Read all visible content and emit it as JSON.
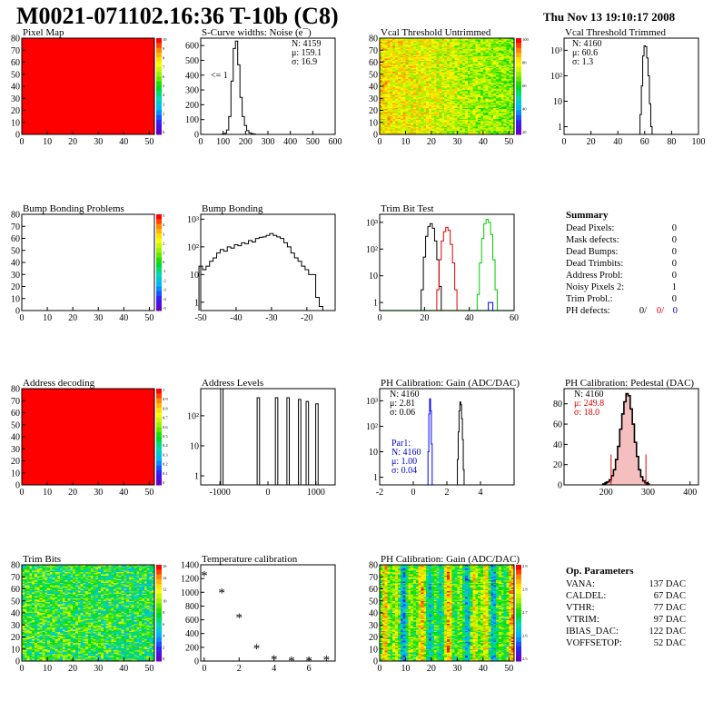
{
  "header": {
    "title": "M0021-071102.16:36 T-10b (C8)",
    "date": "Thu Nov 13 19:10:17 2008"
  },
  "colors": {
    "red_map": "#ff0000",
    "noise_text": "#000000",
    "red_text": "#dd0000",
    "blue_text": "#0000cc",
    "green_line": "#00cc00",
    "red_line": "#dd0000",
    "blue_line": "#0000ff"
  },
  "palette_labels": {
    "pixel_map": [
      "10",
      "9",
      "8",
      "7",
      "6",
      "5",
      "4",
      "3",
      "2",
      "1",
      "0"
    ],
    "bump_map": [
      "5",
      "4",
      "3",
      "2",
      "1",
      "0",
      "-1",
      "-2",
      "-3",
      "-4",
      "-5"
    ],
    "address_map": [
      "1",
      "0.9",
      "0.8",
      "0.7",
      "0.6",
      "0.5",
      "0.4",
      "0.3",
      "0.2",
      "0.1",
      "0"
    ],
    "vcal_map": [
      "100",
      "80",
      "60",
      "40",
      "20"
    ],
    "trim_map": [
      "16",
      "14",
      "12",
      "10",
      "8",
      "6",
      "4",
      "2",
      "0"
    ],
    "gain_map": [
      "2.9",
      "2.8",
      "2.7",
      "2.6",
      "2.5"
    ]
  },
  "chart_data": [
    {
      "id": "pixel-map",
      "type": "heatmap",
      "title": "Pixel Map",
      "x_ticks": [
        "0",
        "10",
        "20",
        "30",
        "40",
        "50"
      ],
      "y_ticks": [
        "0",
        "10",
        "20",
        "30",
        "40",
        "50",
        "60",
        "70",
        "80"
      ],
      "xlim": [
        0,
        52
      ],
      "ylim": [
        0,
        80
      ],
      "fill": "uniform-red"
    },
    {
      "id": "scurve-noise",
      "type": "line",
      "title": "S-Curve widths: Noise (e¯)",
      "x_ticks": [
        "0",
        "100",
        "200",
        "300",
        "400",
        "500",
        "600"
      ],
      "y_ticks": [
        "0",
        "100",
        "200",
        "300",
        "400",
        "500",
        "600"
      ],
      "xlim": [
        0,
        600
      ],
      "ylim": [
        0,
        650
      ],
      "log": false,
      "stats": {
        "entries": "N: 4159",
        "mean": "μ: 159.1",
        "sigma": "σ: 16.9"
      },
      "annotation": "<= 1",
      "x": [
        90,
        100,
        110,
        120,
        130,
        140,
        150,
        160,
        170,
        180,
        190,
        200,
        210,
        220,
        230,
        240,
        250
      ],
      "y": [
        0,
        2,
        8,
        30,
        120,
        360,
        580,
        630,
        470,
        250,
        120,
        60,
        25,
        10,
        5,
        2,
        0
      ]
    },
    {
      "id": "vcal-untrimmed",
      "type": "heatmap",
      "title": "Vcal Threshold Untrimmed",
      "x_ticks": [
        "0",
        "10",
        "20",
        "30",
        "40",
        "50"
      ],
      "y_ticks": [
        "0",
        "10",
        "20",
        "30",
        "40",
        "50",
        "60",
        "70",
        "80"
      ],
      "xlim": [
        0,
        52
      ],
      "ylim": [
        0,
        80
      ],
      "zlim": [
        20,
        110
      ]
    },
    {
      "id": "vcal-trimmed",
      "type": "line",
      "title": "Vcal Threshold Trimmed",
      "x_ticks": [
        "0",
        "20",
        "40",
        "60",
        "80",
        "100"
      ],
      "y_ticks": [
        "1",
        "10",
        "10²",
        "10³"
      ],
      "xlim": [
        0,
        100
      ],
      "ylim": [
        0.5,
        3000
      ],
      "log": true,
      "stats": {
        "entries": "N: 4160",
        "mean": "μ: 60.6",
        "sigma": "σ:  1.3"
      },
      "x": [
        56,
        57,
        58,
        59,
        60,
        61,
        62,
        63,
        64,
        65,
        66
      ],
      "y": [
        0.5,
        3,
        40,
        600,
        1500,
        1400,
        500,
        100,
        8,
        1,
        0.5
      ]
    },
    {
      "id": "bump-problems",
      "type": "heatmap",
      "title": "Bump Bonding Problems",
      "x_ticks": [
        "0",
        "10",
        "20",
        "30",
        "40",
        "50"
      ],
      "y_ticks": [
        "0",
        "10",
        "20",
        "30",
        "40",
        "50",
        "60",
        "70",
        "80"
      ],
      "xlim": [
        0,
        52
      ],
      "ylim": [
        0,
        80
      ],
      "fill": "empty"
    },
    {
      "id": "bump-bonding",
      "type": "line",
      "title": "Bump Bonding",
      "x_ticks": [
        "-50",
        "-40",
        "-30",
        "-20"
      ],
      "y_ticks": [
        "1",
        "10",
        "10²",
        "10³"
      ],
      "xlim": [
        -50,
        -12
      ],
      "ylim": [
        0.5,
        1500
      ],
      "log": true,
      "x": [
        -50,
        -49,
        -48,
        -47,
        -46,
        -45,
        -44,
        -43,
        -42,
        -41,
        -40,
        -39,
        -38,
        -37,
        -36,
        -35,
        -34,
        -33,
        -32,
        -31,
        -30,
        -29,
        -28,
        -27,
        -26,
        -25,
        -24,
        -23,
        -22,
        -21,
        -20,
        -19,
        -18,
        -17,
        -16,
        -15
      ],
      "y": [
        20,
        15,
        20,
        30,
        40,
        60,
        80,
        70,
        100,
        90,
        120,
        110,
        140,
        130,
        170,
        150,
        200,
        220,
        230,
        260,
        300,
        260,
        230,
        200,
        140,
        100,
        60,
        40,
        30,
        20,
        15,
        10,
        10,
        1.5,
        0.7,
        0.4
      ]
    },
    {
      "id": "trim-bit-test",
      "type": "line",
      "title": "Trim Bit Test",
      "x_ticks": [
        "0",
        "20",
        "40",
        "60"
      ],
      "y_ticks": [
        "1",
        "10",
        "10²",
        "10³"
      ],
      "xlim": [
        0,
        60
      ],
      "ylim": [
        0.5,
        2000
      ],
      "log": true,
      "series": [
        {
          "color": "#000000",
          "x": [
            18,
            19,
            20,
            21,
            22,
            23,
            24,
            25,
            26,
            27,
            28
          ],
          "y": [
            0.4,
            3,
            50,
            300,
            700,
            900,
            600,
            200,
            40,
            4,
            0.4
          ]
        },
        {
          "color": "#dd0000",
          "x": [
            25,
            26,
            27,
            28,
            29,
            30,
            31,
            32,
            33,
            34,
            35
          ],
          "y": [
            0.4,
            3,
            40,
            200,
            450,
            650,
            500,
            150,
            30,
            3,
            0.4
          ]
        },
        {
          "color": "#00cc00",
          "x": [
            43,
            44,
            45,
            46,
            47,
            48,
            49,
            50,
            51,
            52,
            53
          ],
          "y": [
            0.4,
            2,
            30,
            250,
            900,
            1300,
            1000,
            350,
            40,
            3,
            0.4
          ]
        },
        {
          "color": "#0000ff",
          "x": [
            48,
            49,
            50,
            51
          ],
          "y": [
            0.4,
            1,
            1,
            0.4
          ]
        }
      ]
    },
    {
      "id": "address-decoding",
      "type": "heatmap",
      "title": "Address decoding",
      "x_ticks": [
        "0",
        "10",
        "20",
        "30",
        "40",
        "50"
      ],
      "y_ticks": [
        "0",
        "10",
        "20",
        "30",
        "40",
        "50",
        "60",
        "70",
        "80"
      ],
      "xlim": [
        0,
        52
      ],
      "ylim": [
        0,
        80
      ],
      "fill": "uniform-red"
    },
    {
      "id": "address-levels",
      "type": "line",
      "title": "Address Levels",
      "x_ticks": [
        "-1000",
        "0",
        "1000"
      ],
      "y_ticks": [
        "1",
        "10",
        "10²"
      ],
      "xlim": [
        -1400,
        1400
      ],
      "ylim": [
        0.5,
        800
      ],
      "log": true,
      "peaks": [
        -960,
        -200,
        180,
        420,
        660,
        820,
        1020
      ],
      "peak_heights": [
        2000,
        400,
        400,
        400,
        350,
        300,
        250
      ]
    },
    {
      "id": "ph-gain",
      "type": "line",
      "title": "PH Calibration: Gain (ADC/DAC)",
      "x_ticks": [
        "-2",
        "0",
        "2",
        "4"
      ],
      "y_ticks": [
        "1",
        "10",
        "10²",
        "10³"
      ],
      "xlim": [
        -2,
        6
      ],
      "ylim": [
        0.5,
        3000
      ],
      "log": true,
      "stats": {
        "entries": "N: 4160",
        "mean": "μ: 2.81",
        "sigma": "σ: 0.06"
      },
      "stats2": {
        "name": "Par1:",
        "entries": "N: 4160",
        "mean": "μ: 1.00",
        "sigma": "σ: 0.04"
      },
      "series": [
        {
          "color": "#000000",
          "x": [
            2.6,
            2.65,
            2.7,
            2.75,
            2.8,
            2.85,
            2.9,
            2.95,
            3.0,
            3.05
          ],
          "y": [
            0.4,
            5,
            60,
            400,
            900,
            700,
            200,
            30,
            2,
            0.4
          ]
        },
        {
          "color": "#0000ff",
          "x": [
            0.85,
            0.9,
            0.95,
            1.0,
            1.05,
            1.1,
            1.15
          ],
          "y": [
            0.4,
            10,
            300,
            1200,
            400,
            20,
            0.4
          ]
        }
      ]
    },
    {
      "id": "ph-pedestal",
      "type": "line",
      "title": "PH Calibration: Pedestal (DAC)",
      "x_ticks": [
        "200",
        "300",
        "400"
      ],
      "y_ticks": [
        "0",
        "20",
        "40",
        "60",
        "80"
      ],
      "xlim": [
        100,
        420
      ],
      "ylim": [
        0,
        95
      ],
      "log": false,
      "stats": {
        "entries": "N: 4160",
        "mean": "μ: 249.8",
        "sigma": "σ: 18.0"
      },
      "cut_lines": [
        212,
        295
      ],
      "x": [
        195,
        200,
        205,
        210,
        215,
        220,
        225,
        230,
        235,
        240,
        245,
        250,
        255,
        260,
        265,
        270,
        275,
        280,
        285,
        290,
        295,
        300
      ],
      "y": [
        1,
        2,
        3,
        5,
        9,
        15,
        25,
        38,
        55,
        70,
        82,
        90,
        88,
        75,
        60,
        42,
        28,
        15,
        8,
        4,
        2,
        1
      ]
    },
    {
      "id": "trim-bits",
      "type": "heatmap",
      "title": "Trim Bits",
      "x_ticks": [
        "0",
        "10",
        "20",
        "30",
        "40",
        "50"
      ],
      "y_ticks": [
        "0",
        "10",
        "20",
        "30",
        "40",
        "50",
        "60",
        "70",
        "80"
      ],
      "xlim": [
        0,
        52
      ],
      "ylim": [
        0,
        80
      ],
      "zlim": [
        0,
        16
      ]
    },
    {
      "id": "temperature-calibration",
      "type": "scatter",
      "title": "Temperature calibration",
      "x_ticks": [
        "0",
        "2",
        "4",
        "6"
      ],
      "y_ticks": [
        "0",
        "200",
        "400",
        "600",
        "800",
        "1000",
        "1200",
        "1400"
      ],
      "xlim": [
        -0.2,
        7.5
      ],
      "ylim": [
        0,
        1400
      ],
      "x": [
        0,
        1,
        2,
        3,
        4,
        5,
        6,
        7
      ],
      "y": [
        1260,
        1010,
        650,
        200,
        40,
        20,
        20,
        30
      ]
    },
    {
      "id": "ph-gain-map",
      "type": "heatmap",
      "title": "PH Calibration: Gain (ADC/DAC)",
      "x_ticks": [
        "0",
        "10",
        "20",
        "30",
        "40",
        "50"
      ],
      "y_ticks": [
        "0",
        "10",
        "20",
        "30",
        "40",
        "50",
        "60",
        "70",
        "80"
      ],
      "xlim": [
        0,
        52
      ],
      "ylim": [
        0,
        80
      ],
      "zlim": [
        2.5,
        2.95
      ]
    }
  ],
  "summary": {
    "title": "Summary",
    "rows": [
      {
        "label": "Dead Pixels:",
        "value": "0"
      },
      {
        "label": "Mask defects:",
        "value": "0"
      },
      {
        "label": "Dead Bumps:",
        "value": "0"
      },
      {
        "label": "Dead Trimbits:",
        "value": "0"
      },
      {
        "label": "Address Probl:",
        "value": "0"
      },
      {
        "label": "Noisy Pixels 2:",
        "value": "1"
      },
      {
        "label": "Trim Probl.:",
        "value": "0"
      }
    ],
    "ph_label": "PH defects:",
    "ph_values": [
      "0/",
      "0/",
      "0"
    ]
  },
  "op_params": {
    "title": "Op. Parameters",
    "rows": [
      {
        "label": "VANA:",
        "value": "137 DAC"
      },
      {
        "label": "CALDEL:",
        "value": "67 DAC"
      },
      {
        "label": "VTHR:",
        "value": "77 DAC"
      },
      {
        "label": "VTRIM:",
        "value": "97 DAC"
      },
      {
        "label": "IBIAS_DAC:",
        "value": "122 DAC"
      },
      {
        "label": "VOFFSETOP:",
        "value": "52 DAC"
      }
    ]
  }
}
